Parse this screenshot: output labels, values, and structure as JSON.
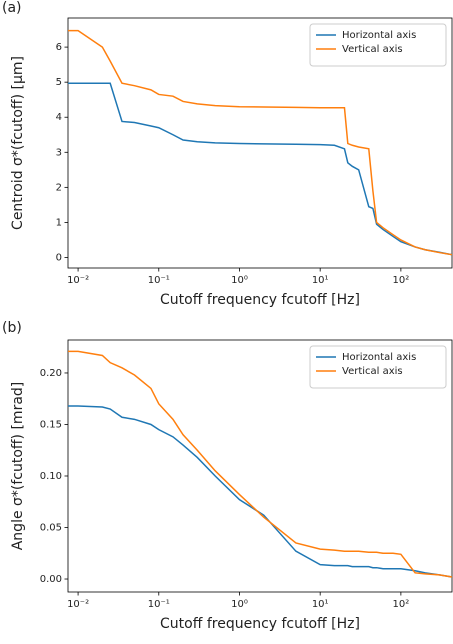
{
  "chart_data": [
    {
      "type": "line",
      "panel_label": "(a)",
      "x_label": "Cutoff frequency fcutoff [Hz]",
      "y_label": "Centroid σ*(fcutoff) [μm]",
      "log_x": true,
      "legend": "upper right",
      "x": [
        0.0075,
        0.01,
        0.02,
        0.025,
        0.035,
        0.05,
        0.08,
        0.1,
        0.15,
        0.2,
        0.3,
        0.5,
        1,
        2,
        5,
        10,
        15,
        20,
        22,
        25,
        30,
        40,
        45,
        50,
        60,
        80,
        100,
        150,
        200,
        300,
        430
      ],
      "series": [
        {
          "name": "Horizontal axis",
          "color": "#1f77b4",
          "values": [
            4.97,
            4.97,
            4.97,
            4.97,
            3.88,
            3.85,
            3.75,
            3.7,
            3.5,
            3.35,
            3.3,
            3.27,
            3.25,
            3.24,
            3.23,
            3.22,
            3.2,
            3.1,
            2.7,
            2.6,
            2.5,
            1.45,
            1.4,
            0.95,
            0.8,
            0.6,
            0.45,
            0.3,
            0.22,
            0.15,
            0.08
          ]
        },
        {
          "name": "Vertical axis",
          "color": "#ff7f0e",
          "values": [
            6.47,
            6.47,
            6.0,
            5.6,
            4.97,
            4.9,
            4.78,
            4.65,
            4.6,
            4.45,
            4.38,
            4.33,
            4.3,
            4.29,
            4.28,
            4.27,
            4.27,
            4.27,
            3.25,
            3.2,
            3.15,
            3.1,
            1.9,
            1.0,
            0.85,
            0.65,
            0.5,
            0.3,
            0.22,
            0.14,
            0.08
          ]
        }
      ],
      "xlim": [
        0.0075,
        430
      ],
      "xticks": [
        {
          "value": 0.01,
          "label": "10⁻²"
        },
        {
          "value": 0.1,
          "label": "10⁻¹"
        },
        {
          "value": 1,
          "label": "10⁰"
        },
        {
          "value": 10,
          "label": "10¹"
        },
        {
          "value": 100,
          "label": "10²"
        }
      ],
      "ylim": [
        -0.3,
        6.83
      ],
      "yticks": [
        0,
        1,
        2,
        3,
        4,
        5,
        6
      ]
    },
    {
      "type": "line",
      "panel_label": "(b)",
      "x_label": "Cutoff frequency fcutoff [Hz]",
      "y_label": "Angle σ*(fcutoff) [mrad]",
      "log_x": true,
      "legend": "upper right",
      "x": [
        0.0075,
        0.01,
        0.02,
        0.025,
        0.035,
        0.05,
        0.08,
        0.1,
        0.15,
        0.2,
        0.3,
        0.5,
        1,
        2,
        5,
        10,
        15,
        20,
        22,
        25,
        30,
        40,
        45,
        50,
        60,
        80,
        100,
        150,
        200,
        300,
        430
      ],
      "series": [
        {
          "name": "Horizontal axis",
          "color": "#1f77b4",
          "values": [
            0.168,
            0.168,
            0.167,
            0.165,
            0.157,
            0.155,
            0.15,
            0.145,
            0.138,
            0.13,
            0.118,
            0.1,
            0.077,
            0.062,
            0.027,
            0.014,
            0.013,
            0.013,
            0.013,
            0.012,
            0.012,
            0.012,
            0.011,
            0.011,
            0.01,
            0.01,
            0.01,
            0.008,
            0.006,
            0.004,
            0.002
          ]
        },
        {
          "name": "Vertical axis",
          "color": "#ff7f0e",
          "values": [
            0.221,
            0.221,
            0.217,
            0.21,
            0.205,
            0.198,
            0.185,
            0.17,
            0.155,
            0.14,
            0.125,
            0.105,
            0.082,
            0.06,
            0.035,
            0.029,
            0.028,
            0.027,
            0.027,
            0.027,
            0.027,
            0.026,
            0.026,
            0.026,
            0.025,
            0.025,
            0.024,
            0.006,
            0.005,
            0.004,
            0.002
          ]
        }
      ],
      "xlim": [
        0.0075,
        430
      ],
      "xticks": [
        {
          "value": 0.01,
          "label": "10⁻²"
        },
        {
          "value": 0.1,
          "label": "10⁻¹"
        },
        {
          "value": 1,
          "label": "10⁰"
        },
        {
          "value": 10,
          "label": "10¹"
        },
        {
          "value": 100,
          "label": "10²"
        }
      ],
      "ylim": [
        -0.0126,
        0.232
      ],
      "yticks": [
        {
          "value": 0,
          "label": "0.00"
        },
        0.05,
        {
          "value": 0.1,
          "label": "0.10"
        },
        0.15,
        {
          "value": 0.2,
          "label": "0.20"
        }
      ]
    }
  ]
}
